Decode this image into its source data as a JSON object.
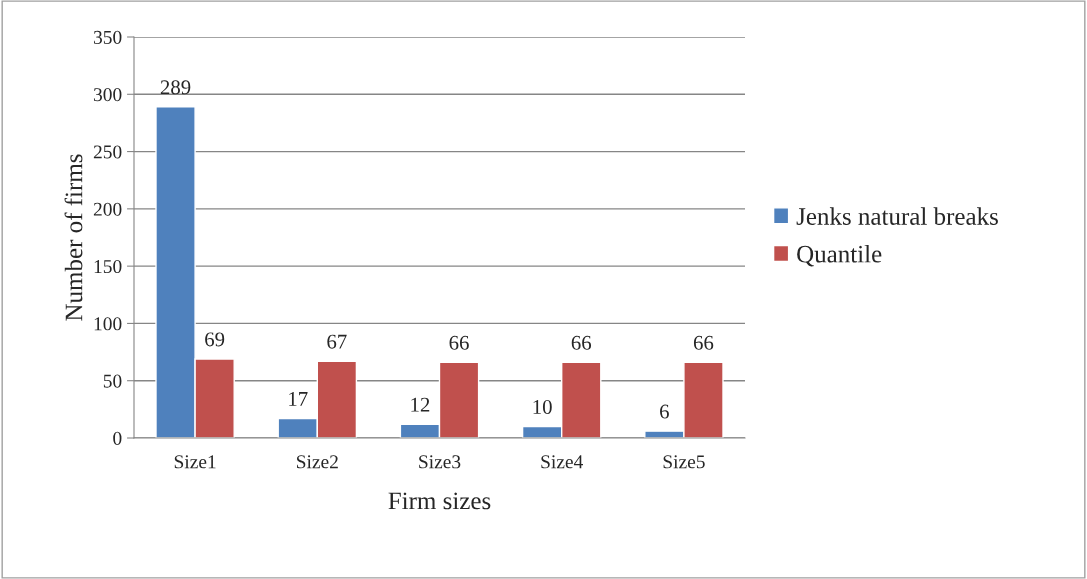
{
  "chart_data": {
    "type": "bar",
    "xlabel": "Firm sizes",
    "ylabel": "Number of firms",
    "categories": [
      "Size1",
      "Size2",
      "Size3",
      "Size4",
      "Size5"
    ],
    "series": [
      {
        "name": "Jenks natural breaks",
        "color": "#4f81bd",
        "values": [
          289,
          17,
          12,
          10,
          6
        ]
      },
      {
        "name": "Quantile",
        "color": "#c0504d",
        "values": [
          69,
          67,
          66,
          66,
          66
        ]
      }
    ],
    "ylim": [
      0,
      350
    ],
    "yticks": [
      0,
      50,
      100,
      150,
      200,
      250,
      300,
      350
    ],
    "grid": "y",
    "legend": "right",
    "data_labels": true
  }
}
